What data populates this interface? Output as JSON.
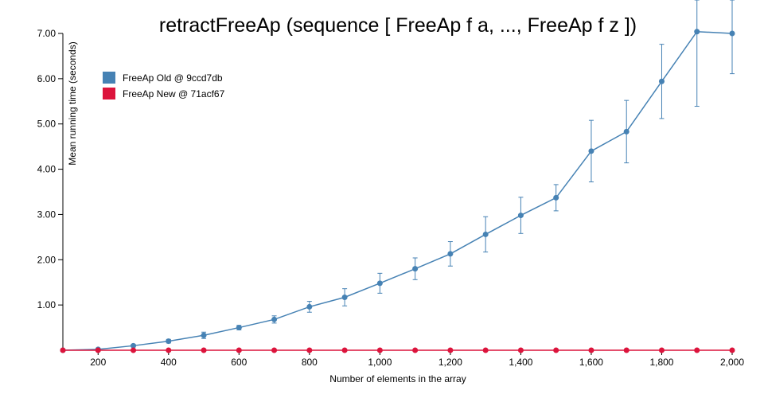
{
  "chart_data": {
    "type": "line",
    "title": "retractFreeAp (sequence [ FreeAp f a, ..., FreeAp f z ])",
    "xlabel": "Number of elements in the array",
    "ylabel": "Mean running time (seconds)",
    "xlim": [
      100,
      2000
    ],
    "ylim": [
      0,
      7.0
    ],
    "x_ticks": [
      200,
      400,
      600,
      800,
      1000,
      1200,
      1400,
      1600,
      1800,
      2000
    ],
    "x_tick_labels": [
      "200",
      "400",
      "600",
      "800",
      "1,000",
      "1,200",
      "1,400",
      "1,600",
      "1,800",
      "2,000"
    ],
    "y_ticks": [
      1,
      2,
      3,
      4,
      5,
      6,
      7
    ],
    "y_tick_labels": [
      "1.00",
      "2.00",
      "3.00",
      "4.00",
      "5.00",
      "6.00",
      "7.00"
    ],
    "grid": false,
    "legend_position": "top-left",
    "x": [
      100,
      200,
      300,
      400,
      500,
      600,
      700,
      800,
      900,
      1000,
      1100,
      1200,
      1300,
      1400,
      1500,
      1600,
      1700,
      1800,
      1900,
      2000
    ],
    "series": [
      {
        "name": "FreeAp Old @ 9ccd7db",
        "color": "#4682b4",
        "values": [
          0.0,
          0.02,
          0.1,
          0.2,
          0.33,
          0.5,
          0.68,
          0.96,
          1.17,
          1.48,
          1.8,
          2.13,
          2.56,
          2.98,
          3.37,
          4.4,
          4.83,
          5.94,
          7.04,
          7.0
        ],
        "error": [
          0.0,
          0.01,
          0.03,
          0.04,
          0.07,
          0.05,
          0.08,
          0.12,
          0.19,
          0.22,
          0.24,
          0.27,
          0.39,
          0.4,
          0.29,
          0.68,
          0.69,
          0.82,
          1.65,
          0.89
        ]
      },
      {
        "name": "FreeAp New @ 71acf67",
        "color": "#dc143c",
        "values": [
          0.0,
          0.0,
          0.0,
          0.0,
          0.0,
          0.0,
          0.0,
          0.0,
          0.0,
          0.0,
          0.0,
          0.0,
          0.0,
          0.0,
          0.0,
          0.0,
          0.0,
          0.0,
          0.0,
          0.0
        ]
      }
    ]
  }
}
